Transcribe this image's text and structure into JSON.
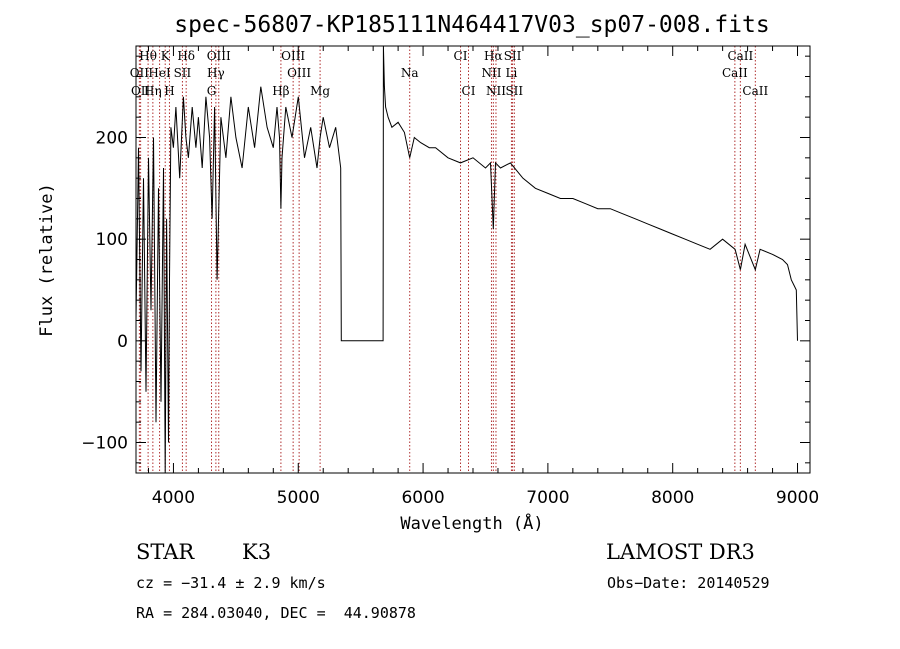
{
  "chart_data": {
    "type": "line",
    "title": "spec-56807-KP185111N464417V03_sp07-008.fits",
    "xlabel": "Wavelength (Å)",
    "ylabel": "Flux (relative)",
    "xlim": [
      3700,
      9100
    ],
    "ylim": [
      -130,
      290
    ],
    "xticks": [
      4000,
      5000,
      6000,
      7000,
      8000,
      9000
    ],
    "xtick_labels": [
      "4000",
      "5000",
      "6000",
      "7000",
      "8000",
      "9000"
    ],
    "yticks": [
      -100,
      0,
      100,
      200
    ],
    "ytick_labels": [
      "−100",
      "0",
      "100",
      "200"
    ],
    "series": [
      {
        "name": "spectrum",
        "x": [
          3700,
          3720,
          3740,
          3760,
          3780,
          3800,
          3820,
          3840,
          3860,
          3880,
          3900,
          3920,
          3934,
          3945,
          3960,
          3968,
          3980,
          4000,
          4020,
          4050,
          4080,
          4100,
          4120,
          4150,
          4180,
          4200,
          4230,
          4260,
          4290,
          4310,
          4330,
          4350,
          4380,
          4420,
          4460,
          4500,
          4550,
          4600,
          4650,
          4700,
          4750,
          4800,
          4830,
          4850,
          4861,
          4870,
          4900,
          4950,
          5000,
          5050,
          5100,
          5150,
          5175,
          5200,
          5250,
          5300,
          5340,
          5345,
          5680,
          5682,
          5690,
          5700,
          5720,
          5750,
          5800,
          5850,
          5893,
          5930,
          5980,
          6050,
          6100,
          6200,
          6300,
          6400,
          6500,
          6540,
          6563,
          6580,
          6620,
          6700,
          6800,
          6900,
          7000,
          7100,
          7200,
          7300,
          7400,
          7500,
          7600,
          7700,
          7800,
          7900,
          8000,
          8100,
          8200,
          8300,
          8400,
          8500,
          8542,
          8580,
          8662,
          8700,
          8800,
          8880,
          8920,
          8950,
          8970,
          8990,
          9000
        ],
        "y": [
          20,
          190,
          -30,
          160,
          -50,
          180,
          30,
          200,
          -80,
          150,
          -60,
          170,
          -130,
          120,
          -100,
          60,
          210,
          190,
          230,
          160,
          240,
          200,
          180,
          230,
          190,
          220,
          170,
          240,
          200,
          120,
          230,
          60,
          220,
          180,
          240,
          200,
          170,
          230,
          190,
          250,
          210,
          190,
          230,
          200,
          130,
          180,
          230,
          200,
          240,
          180,
          210,
          170,
          200,
          220,
          190,
          210,
          170,
          0,
          0,
          290,
          250,
          230,
          220,
          210,
          215,
          205,
          180,
          200,
          195,
          190,
          190,
          180,
          175,
          180,
          170,
          175,
          110,
          175,
          170,
          175,
          160,
          150,
          145,
          140,
          140,
          135,
          130,
          130,
          125,
          120,
          115,
          110,
          105,
          100,
          95,
          90,
          100,
          90,
          70,
          95,
          70,
          90,
          85,
          80,
          75,
          60,
          55,
          50,
          0
        ]
      }
    ],
    "lines": [
      {
        "name": "Hθ",
        "wl": 3797,
        "row": 1
      },
      {
        "name": "K",
        "wl": 3934,
        "row": 1
      },
      {
        "name": "Hδ",
        "wl": 4102,
        "row": 1
      },
      {
        "name": "OIII",
        "wl": 4363,
        "row": 1
      },
      {
        "name": "OIII",
        "wl": 4959,
        "row": 1
      },
      {
        "name": "CI",
        "wl": 6300,
        "row": 1
      },
      {
        "name": "Hα",
        "wl": 6563,
        "row": 1
      },
      {
        "name": "SII",
        "wl": 6717,
        "row": 1
      },
      {
        "name": "CaII",
        "wl": 8542,
        "row": 1
      },
      {
        "name": "OII",
        "wl": 3727,
        "row": 2
      },
      {
        "name": "HeI",
        "wl": 3889,
        "row": 2
      },
      {
        "name": "SII",
        "wl": 4072,
        "row": 2
      },
      {
        "name": "Hγ",
        "wl": 4340,
        "row": 2
      },
      {
        "name": "OIII",
        "wl": 5007,
        "row": 2
      },
      {
        "name": "Na",
        "wl": 5893,
        "row": 2
      },
      {
        "name": "NII",
        "wl": 6548,
        "row": 2
      },
      {
        "name": "Li",
        "wl": 6708,
        "row": 2
      },
      {
        "name": "CaII",
        "wl": 8498,
        "row": 2
      },
      {
        "name": "OII",
        "wl": 3737,
        "row": 3
      },
      {
        "name": "Hη",
        "wl": 3835,
        "row": 3
      },
      {
        "name": "H",
        "wl": 3968,
        "row": 3
      },
      {
        "name": "G",
        "wl": 4305,
        "row": 3
      },
      {
        "name": "Hβ",
        "wl": 4861,
        "row": 3
      },
      {
        "name": "Mg",
        "wl": 5175,
        "row": 3
      },
      {
        "name": "CI",
        "wl": 6364,
        "row": 3
      },
      {
        "name": "NII",
        "wl": 6584,
        "row": 3
      },
      {
        "name": "SII",
        "wl": 6731,
        "row": 3
      },
      {
        "name": "CaII",
        "wl": 8662,
        "row": 3
      }
    ]
  },
  "info": {
    "class": "STAR",
    "subclass": "K3",
    "survey": "LAMOST DR3",
    "cz": "cz = −31.4 ± 2.9 km/s",
    "obs_date": "Obs−Date: 20140529",
    "coords": "RA = 284.03040, DEC =  44.90878"
  }
}
